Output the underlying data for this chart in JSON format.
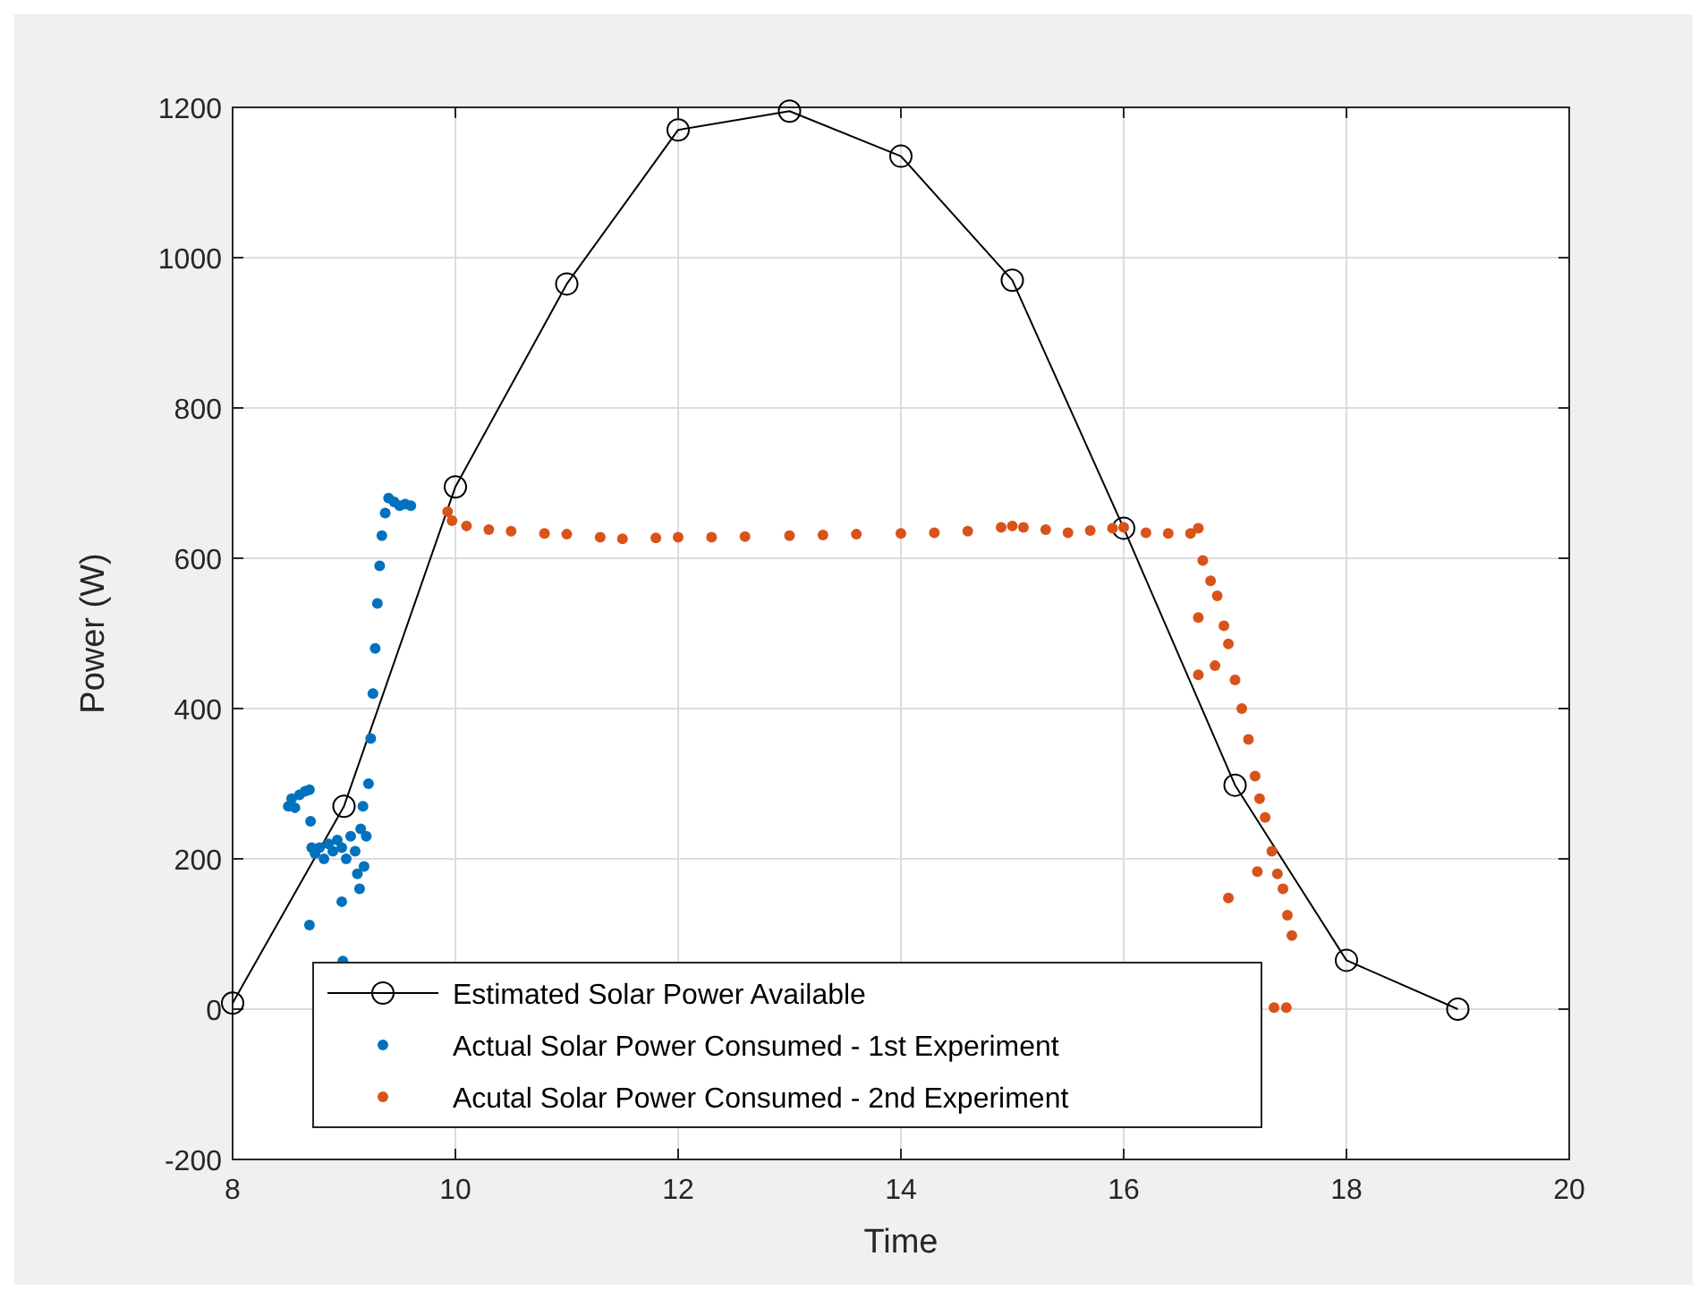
{
  "chart_data": {
    "type": "scatter",
    "xlabel": "Time",
    "ylabel": "Power (W)",
    "xlim": [
      8,
      20
    ],
    "ylim": [
      -200,
      1200
    ],
    "xticks": [
      8,
      10,
      12,
      14,
      16,
      18,
      20
    ],
    "yticks": [
      -200,
      0,
      200,
      400,
      600,
      800,
      1000,
      1200
    ],
    "grid": true,
    "legend": "bottom left",
    "series": [
      {
        "name": "Estimated Solar Power Available",
        "type": "line",
        "color": "#000000",
        "marker": "circle",
        "line_style": "solid",
        "x": [
          8,
          9,
          10,
          11,
          12,
          13,
          14,
          15,
          16,
          17,
          18,
          19
        ],
        "values": [
          8,
          270,
          695,
          965,
          1170,
          1195,
          1135,
          970,
          640,
          298,
          65,
          0
        ]
      },
      {
        "name": "Actual Solar Power Consumed - 1st Experiment",
        "color": "#0072bd",
        "marker": "circle",
        "x": [
          8.5,
          8.53,
          8.56,
          8.6,
          8.65,
          8.69,
          8.7,
          8.71,
          8.74,
          8.78,
          8.82,
          8.86,
          8.9,
          8.94,
          8.98,
          9.02,
          9.06,
          9.1,
          9.12,
          9.14,
          9.15,
          9.17,
          9.18,
          9.2,
          9.22,
          9.24,
          9.26,
          9.28,
          9.3,
          9.32,
          9.34,
          9.37,
          9.4,
          9.45,
          9.5,
          9.55,
          9.6,
          8.69,
          8.98,
          8.99
        ],
        "values": [
          270,
          280,
          268,
          285,
          290,
          292,
          250,
          215,
          207,
          215,
          200,
          220,
          210,
          225,
          215,
          200,
          230,
          210,
          180,
          160,
          240,
          270,
          190,
          230,
          300,
          360,
          420,
          480,
          540,
          590,
          630,
          660,
          680,
          675,
          670,
          672,
          670,
          112,
          143,
          64
        ]
      },
      {
        "name": "Acutal Solar Power Consumed - 2nd Experiment",
        "color": "#d95319",
        "marker": "circle",
        "x": [
          9.93,
          9.97,
          10.1,
          10.3,
          10.5,
          10.8,
          11,
          11.3,
          11.5,
          11.8,
          12,
          12.3,
          12.6,
          13,
          13.3,
          13.6,
          14,
          14.3,
          14.6,
          14.9,
          15,
          15.1,
          15.3,
          15.5,
          15.7,
          15.9,
          16,
          16.2,
          16.4,
          16.6,
          16.67,
          16.71,
          16.78,
          16.84,
          16.9,
          16.94,
          17,
          17.06,
          17.12,
          17.18,
          17.22,
          17.27,
          17.33,
          17.38,
          17.43,
          17.47,
          17.51,
          16.67,
          16.67,
          16.82,
          17.2,
          16.94,
          17.35,
          17.46
        ],
        "values": [
          662,
          650,
          643,
          638,
          636,
          633,
          632,
          628,
          626,
          627,
          628,
          628,
          629,
          630,
          631,
          632,
          633,
          634,
          636,
          641,
          643,
          641,
          638,
          634,
          637,
          640,
          641,
          634,
          633,
          633,
          640,
          597,
          570,
          550,
          510,
          486,
          438,
          400,
          359,
          310,
          280,
          255,
          210,
          180,
          160,
          125,
          98,
          521,
          445,
          457,
          183,
          148,
          2,
          2
        ]
      }
    ]
  }
}
